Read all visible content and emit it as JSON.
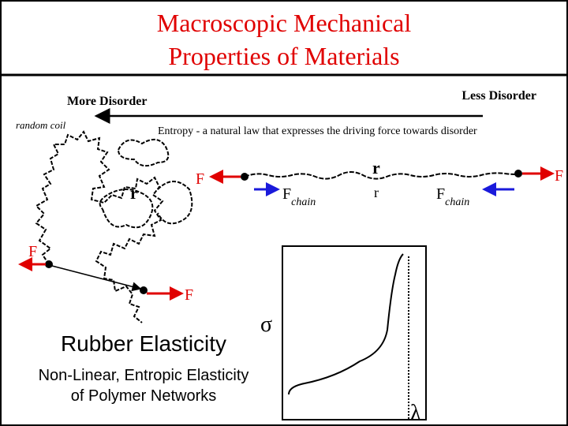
{
  "header": {
    "title_lines": [
      "Macroscopic Mechanical",
      "Properties of Materials"
    ]
  },
  "labels": {
    "more_disorder": "More Disorder",
    "less_disorder": "Less Disorder",
    "random_coil": "random coil",
    "entropy": "Entropy - a natural law that expresses the driving force towards disorder"
  },
  "coil": {
    "end_to_end": "r",
    "forces": [
      "F",
      "F"
    ]
  },
  "stretched": {
    "end_to_end": "r",
    "separation": "r",
    "forces": [
      "F",
      "F"
    ],
    "chain_force": {
      "symbol": "F",
      "subscript": "chain"
    }
  },
  "graph": {
    "y_label": "σ",
    "x_label": "λ"
  },
  "summary": {
    "heading": "Rubber Elasticity",
    "lines": [
      "Non-Linear, Entropic Elasticity",
      "of Polymer Networks"
    ]
  }
}
